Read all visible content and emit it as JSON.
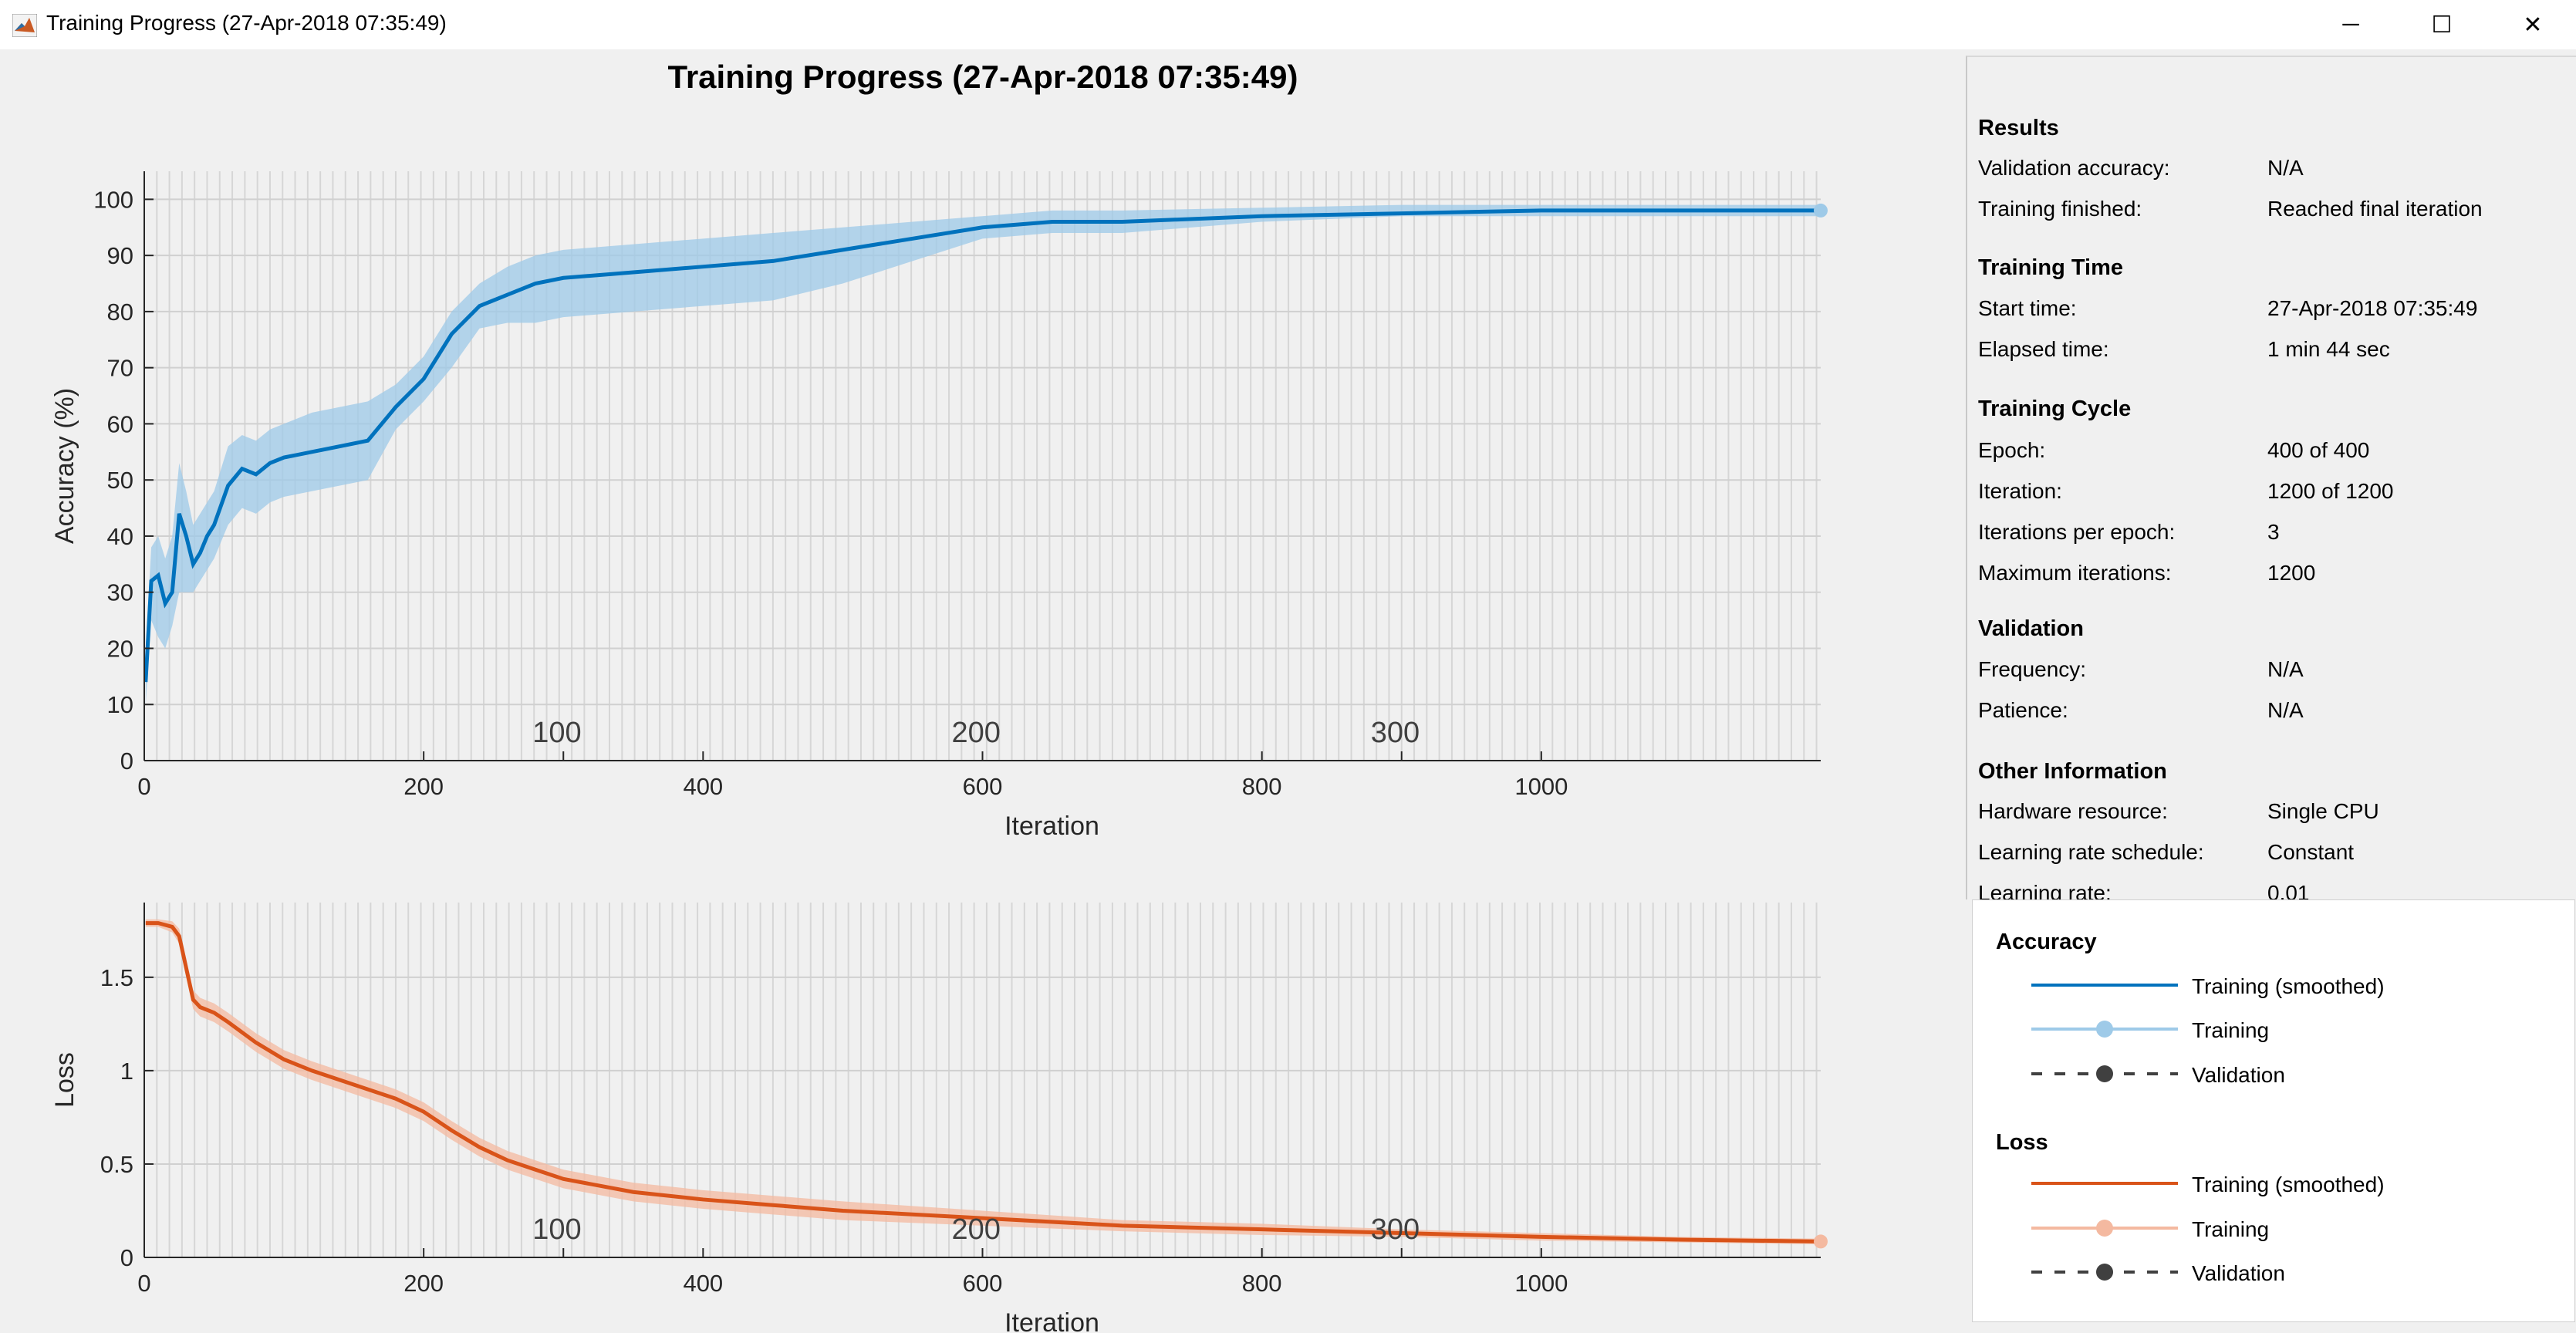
{
  "window": {
    "title": "Training Progress (27-Apr-2018 07:35:49)",
    "minimize": "─",
    "maximize": "☐",
    "close": "✕"
  },
  "main_title": "Training Progress (27-Apr-2018 07:35:49)",
  "results": {
    "sections": [
      {
        "heading": "Results",
        "rows": [
          {
            "label": "Validation accuracy:",
            "value": "N/A"
          },
          {
            "label": "Training finished:",
            "value": "Reached final iteration"
          }
        ]
      },
      {
        "heading": "Training Time",
        "rows": [
          {
            "label": "Start time:",
            "value": "27-Apr-2018 07:35:49"
          },
          {
            "label": "Elapsed time:",
            "value": "1 min 44 sec"
          }
        ]
      },
      {
        "heading": "Training Cycle",
        "rows": [
          {
            "label": "Epoch:",
            "value": "400 of 400"
          },
          {
            "label": "Iteration:",
            "value": "1200 of 1200"
          },
          {
            "label": "Iterations per epoch:",
            "value": "3"
          },
          {
            "label": "Maximum iterations:",
            "value": "1200"
          }
        ]
      },
      {
        "heading": "Validation",
        "rows": [
          {
            "label": "Frequency:",
            "value": "N/A"
          },
          {
            "label": "Patience:",
            "value": "N/A"
          }
        ]
      },
      {
        "heading": "Other Information",
        "rows": [
          {
            "label": "Hardware resource:",
            "value": "Single CPU"
          },
          {
            "label": "Learning rate schedule:",
            "value": "Constant"
          },
          {
            "label": "Learning rate:",
            "value": "0.01"
          }
        ]
      }
    ]
  },
  "legend": {
    "accuracy_heading": "Accuracy",
    "loss_heading": "Loss",
    "accuracy_items": [
      "Training (smoothed)",
      "Training",
      "Validation"
    ],
    "loss_items": [
      "Training (smoothed)",
      "Training",
      "Validation"
    ]
  },
  "colors": {
    "accuracy_smoothed": "#0072bd",
    "accuracy_raw": "#9ecae8",
    "loss_smoothed": "#d95319",
    "loss_raw": "#f4b9a0",
    "validation": "#404040"
  },
  "chart_data": [
    {
      "type": "line",
      "name": "accuracy",
      "xlabel": "Iteration",
      "ylabel": "Accuracy (%)",
      "xlim": [
        0,
        1200
      ],
      "ylim": [
        0,
        105
      ],
      "xticks": [
        0,
        200,
        400,
        600,
        800,
        1000
      ],
      "yticks": [
        0,
        10,
        20,
        30,
        40,
        50,
        60,
        70,
        80,
        90,
        100
      ],
      "epoch_labels": [
        100,
        200,
        300
      ],
      "epoch_label_iterations": [
        300,
        600,
        900
      ],
      "grid": true,
      "series": [
        {
          "name": "Training (smoothed)",
          "x": [
            1,
            5,
            10,
            15,
            20,
            25,
            30,
            35,
            40,
            45,
            50,
            60,
            70,
            80,
            90,
            100,
            120,
            140,
            160,
            180,
            200,
            220,
            240,
            260,
            280,
            300,
            350,
            400,
            450,
            500,
            550,
            600,
            650,
            700,
            800,
            900,
            1000,
            1100,
            1200
          ],
          "y": [
            14,
            32,
            33,
            28,
            30,
            44,
            40,
            35,
            37,
            40,
            42,
            49,
            52,
            51,
            53,
            54,
            55,
            56,
            57,
            63,
            68,
            76,
            81,
            83,
            85,
            86,
            87,
            88,
            89,
            91,
            93,
            95,
            96,
            96,
            97,
            97.5,
            98,
            98,
            98
          ]
        },
        {
          "name": "Training",
          "x": [
            1,
            5,
            10,
            15,
            20,
            25,
            30,
            35,
            40,
            45,
            50,
            60,
            70,
            80,
            90,
            100,
            120,
            140,
            160,
            180,
            200,
            220,
            240,
            260,
            280,
            300,
            350,
            400,
            450,
            500,
            550,
            600,
            650,
            700,
            800,
            900,
            1000,
            1100,
            1200
          ],
          "low": [
            10,
            25,
            22,
            20,
            24,
            30,
            30,
            30,
            32,
            34,
            36,
            42,
            45,
            44,
            46,
            47,
            48,
            49,
            50,
            59,
            64,
            70,
            77,
            78,
            78,
            79,
            80,
            81,
            82,
            85,
            89,
            93,
            94,
            94,
            96,
            97,
            97,
            97,
            97
          ],
          "high": [
            20,
            38,
            40,
            36,
            40,
            53,
            48,
            42,
            44,
            46,
            48,
            56,
            58,
            57,
            59,
            60,
            62,
            63,
            64,
            67,
            72,
            80,
            85,
            88,
            90,
            91,
            92,
            93,
            94,
            95,
            96,
            97,
            98,
            98,
            98.5,
            99,
            99,
            99,
            99
          ]
        },
        {
          "name": "Validation",
          "x": [],
          "y": []
        }
      ]
    },
    {
      "type": "line",
      "name": "loss",
      "xlabel": "Iteration",
      "ylabel": "Loss",
      "xlim": [
        0,
        1200
      ],
      "ylim": [
        0,
        1.9
      ],
      "xticks": [
        0,
        200,
        400,
        600,
        800,
        1000
      ],
      "yticks": [
        0,
        0.5,
        1,
        1.5
      ],
      "ytick_labels": [
        "0",
        "0.5",
        "1",
        "1.5"
      ],
      "epoch_labels": [
        100,
        200,
        300
      ],
      "epoch_label_iterations": [
        300,
        600,
        900
      ],
      "grid": true,
      "series": [
        {
          "name": "Training (smoothed)",
          "x": [
            1,
            10,
            20,
            25,
            30,
            35,
            40,
            50,
            60,
            80,
            100,
            120,
            140,
            160,
            180,
            200,
            220,
            240,
            260,
            280,
            300,
            350,
            400,
            450,
            500,
            600,
            700,
            800,
            900,
            1000,
            1100,
            1200
          ],
          "y": [
            1.79,
            1.79,
            1.77,
            1.72,
            1.55,
            1.38,
            1.34,
            1.31,
            1.26,
            1.15,
            1.06,
            1.0,
            0.95,
            0.9,
            0.85,
            0.78,
            0.68,
            0.59,
            0.52,
            0.47,
            0.42,
            0.35,
            0.31,
            0.28,
            0.25,
            0.21,
            0.17,
            0.15,
            0.13,
            0.11,
            0.095,
            0.085
          ]
        },
        {
          "name": "Training",
          "x": [
            1,
            10,
            20,
            25,
            30,
            35,
            40,
            50,
            60,
            80,
            100,
            120,
            140,
            160,
            180,
            200,
            220,
            240,
            260,
            280,
            300,
            350,
            400,
            450,
            500,
            600,
            700,
            800,
            900,
            1000,
            1100,
            1200
          ],
          "low": [
            1.77,
            1.77,
            1.74,
            1.68,
            1.5,
            1.33,
            1.29,
            1.26,
            1.21,
            1.1,
            1.01,
            0.95,
            0.9,
            0.85,
            0.8,
            0.73,
            0.63,
            0.54,
            0.47,
            0.42,
            0.37,
            0.3,
            0.26,
            0.23,
            0.2,
            0.17,
            0.14,
            0.12,
            0.11,
            0.09,
            0.08,
            0.07
          ],
          "high": [
            1.81,
            1.81,
            1.8,
            1.76,
            1.6,
            1.43,
            1.39,
            1.36,
            1.31,
            1.2,
            1.11,
            1.05,
            1.0,
            0.95,
            0.9,
            0.83,
            0.73,
            0.64,
            0.57,
            0.52,
            0.47,
            0.4,
            0.36,
            0.33,
            0.3,
            0.25,
            0.2,
            0.18,
            0.15,
            0.13,
            0.11,
            0.1
          ]
        },
        {
          "name": "Validation",
          "x": [],
          "y": []
        }
      ]
    }
  ]
}
